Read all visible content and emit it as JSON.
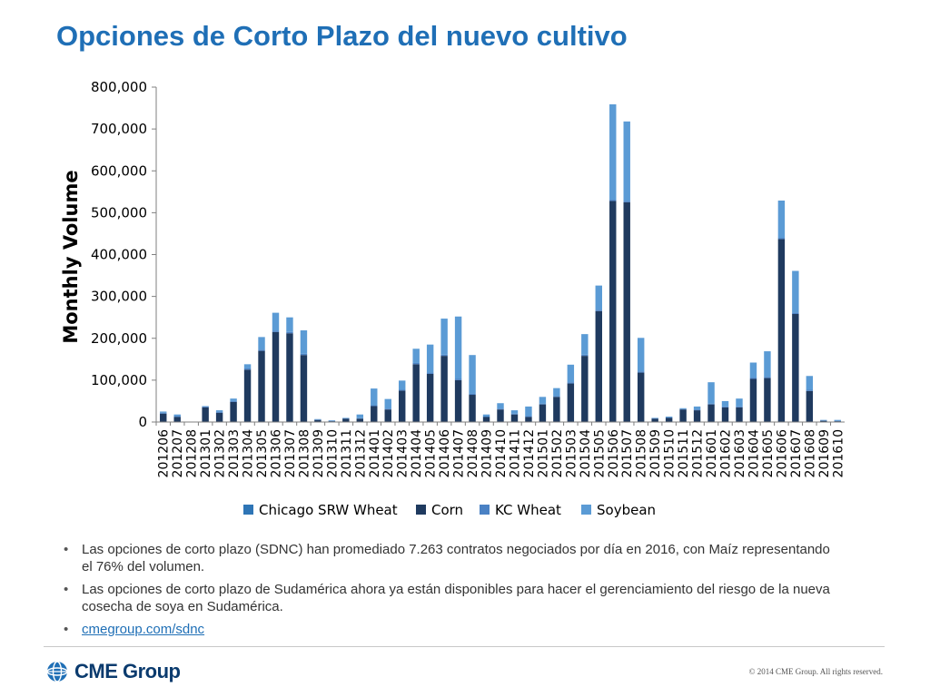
{
  "slide": {
    "title": "Opciones de Corto Plazo del nuevo cultivo",
    "bullets": [
      "Las opciones de corto plazo (SDNC) han promediado 7.263 contratos negociados por día en 2016, con Maíz representando el 76% del volumen.",
      "Las opciones de corto plazo de Sudamérica ahora ya están disponibles para hacer el gerenciamiento del riesgo de la nueva cosecha de soya en Sudamérica."
    ],
    "link": "cmegroup.com/sdnc",
    "copyright": "© 2014 CME Group. All rights reserved.",
    "logo_text": "CME Group",
    "logo_icon": "globe-icon"
  },
  "chart_data": {
    "type": "bar",
    "stacked": true,
    "ylabel": "Monthly Volume",
    "xlabel": "",
    "ylim": [
      0,
      800000
    ],
    "yticks": [
      0,
      100000,
      200000,
      300000,
      400000,
      500000,
      600000,
      700000,
      800000
    ],
    "ytick_labels": [
      "0",
      "100,000",
      "200,000",
      "300,000",
      "400,000",
      "500,000",
      "600,000",
      "700,000",
      "800,000"
    ],
    "grid": false,
    "legend_position": "bottom",
    "categories": [
      "201206",
      "201207",
      "201208",
      "201301",
      "201302",
      "201303",
      "201304",
      "201305",
      "201306",
      "201307",
      "201308",
      "201309",
      "201310",
      "201311",
      "201312",
      "201401",
      "201402",
      "201403",
      "201404",
      "201405",
      "201406",
      "201407",
      "201408",
      "201409",
      "201410",
      "201411",
      "201412",
      "201501",
      "201502",
      "201503",
      "201504",
      "201505",
      "201506",
      "201507",
      "201508",
      "201509",
      "201510",
      "201511",
      "201512",
      "201601",
      "201602",
      "201603",
      "201604",
      "201605",
      "201606",
      "201607",
      "201608",
      "201609",
      "201610"
    ],
    "series": [
      {
        "name": "Chicago SRW Wheat",
        "color": "#2e75b6",
        "values": [
          0,
          0,
          0,
          0,
          0,
          0,
          0,
          0,
          0,
          0,
          0,
          0,
          0,
          0,
          0,
          0,
          0,
          0,
          0,
          0,
          0,
          0,
          0,
          0,
          0,
          0,
          0,
          0,
          0,
          0,
          0,
          0,
          0,
          0,
          0,
          0,
          0,
          0,
          0,
          0,
          0,
          0,
          0,
          0,
          0,
          0,
          0,
          0,
          0
        ]
      },
      {
        "name": "Corn",
        "color": "#1f3a5f",
        "values": [
          20000,
          12000,
          0,
          35000,
          22000,
          48000,
          125000,
          170000,
          215000,
          212000,
          160000,
          5000,
          2000,
          8000,
          8000,
          38000,
          30000,
          75000,
          138000,
          115000,
          158000,
          100000,
          65000,
          12000,
          30000,
          18000,
          12000,
          42000,
          60000,
          92000,
          158000,
          265000,
          528000,
          525000,
          118000,
          8000,
          10000,
          30000,
          28000,
          42000,
          35000,
          35000,
          103000,
          105000,
          437000,
          258000,
          74000,
          3000,
          2000
        ]
      },
      {
        "name": "KC Wheat",
        "color": "#4a81c4",
        "values": [
          2000,
          2000,
          0,
          2000,
          2000,
          2000,
          3000,
          3000,
          3000,
          3000,
          3000,
          1000,
          1000,
          1000,
          1000,
          2000,
          2000,
          2000,
          3000,
          3000,
          3000,
          3000,
          3000,
          1000,
          2000,
          2000,
          2000,
          2000,
          2000,
          3000,
          3000,
          3000,
          3000,
          3000,
          3000,
          1000,
          1000,
          1000,
          2000,
          2000,
          2000,
          2000,
          3000,
          3000,
          3000,
          3000,
          3000,
          1000,
          1000
        ]
      },
      {
        "name": "Soybean",
        "color": "#5b9bd5",
        "values": [
          3000,
          4000,
          0,
          1000,
          4000,
          6000,
          10000,
          30000,
          43000,
          35000,
          56000,
          1000,
          1000,
          1000,
          9000,
          40000,
          23000,
          22000,
          34000,
          67000,
          86000,
          149000,
          92000,
          5000,
          13000,
          8000,
          23000,
          16000,
          19000,
          42000,
          49000,
          58000,
          228000,
          190000,
          80000,
          1000,
          2000,
          2000,
          7000,
          51000,
          13000,
          19000,
          36000,
          61000,
          89000,
          100000,
          33000,
          1000,
          2000
        ]
      }
    ]
  }
}
